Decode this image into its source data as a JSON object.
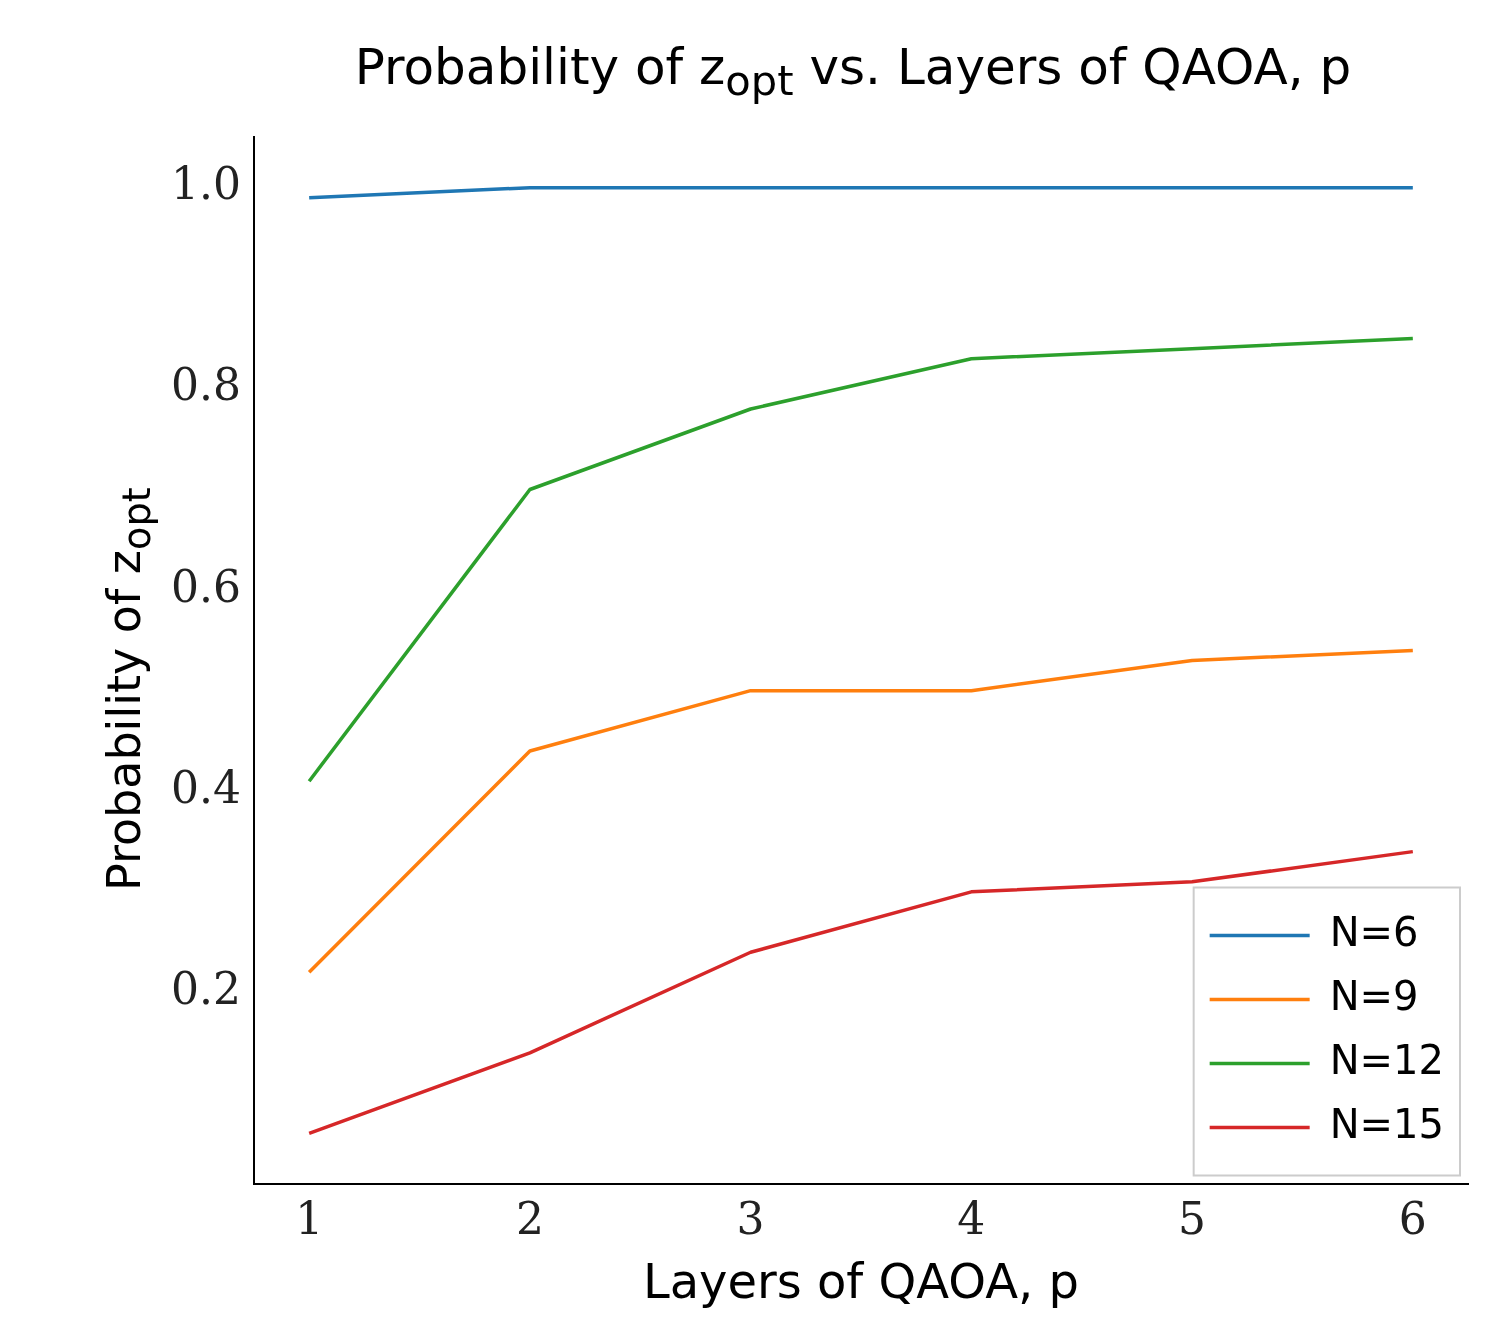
{
  "chart_data": {
    "type": "line",
    "title": "Probability of z$_{opt}$ vs. Layers of QAOA, p",
    "xlabel": "Layers of QAOA, p",
    "ylabel": "Probability of z$_{opt}$",
    "x": [
      1,
      2,
      3,
      4,
      5,
      6
    ],
    "xlim": [
      0.75,
      6.25
    ],
    "xticks": [
      1,
      2,
      3,
      4,
      5,
      6
    ],
    "ylim": [
      0.01,
      1.05
    ],
    "yticks": [
      0.2,
      0.4,
      0.6,
      0.8,
      {
        "value": 1,
        "label": "1.0"
      }
    ],
    "grid": false,
    "legend": "bottom right",
    "marker": "none",
    "line_style": "solid",
    "series": [
      {
        "name": "N=6",
        "color": "#1f77b4",
        "values": [
          0.99,
          1.0,
          1.0,
          1.0,
          1.0,
          1.0
        ]
      },
      {
        "name": "N=9",
        "color": "#ff7f0e",
        "values": [
          0.22,
          0.44,
          0.5,
          0.5,
          0.53,
          0.54
        ]
      },
      {
        "name": "N=12",
        "color": "#2ca02c",
        "values": [
          0.41,
          0.7,
          0.78,
          0.83,
          0.84,
          0.85
        ]
      },
      {
        "name": "N=15",
        "color": "#d62728",
        "values": [
          0.06,
          0.14,
          0.24,
          0.3,
          0.31,
          0.34
        ]
      }
    ]
  }
}
